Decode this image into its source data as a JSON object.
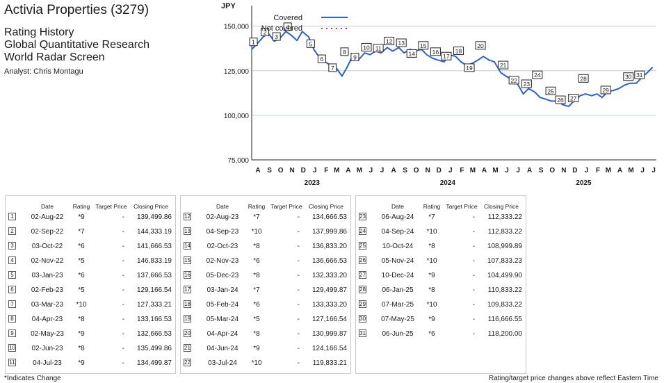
{
  "header": {
    "company": "Activia Properties (3279)",
    "line1": "Rating History",
    "line2": "Global Quantitative Research",
    "line3": "World Radar Screen",
    "analyst": "Analyst: Chris Montagu"
  },
  "chart_data": {
    "type": "line",
    "ylabel": "JPY",
    "ylim": [
      75000,
      160000
    ],
    "yticks": [
      75000,
      100000,
      125000,
      150000
    ],
    "ytick_labels": [
      "75,000",
      "100,000",
      "125,000",
      "150,000"
    ],
    "xlim": [
      "2022-08-01",
      "2025-07-25"
    ],
    "month_labels": [
      "A",
      "S",
      "O",
      "N",
      "D",
      "J",
      "F",
      "M",
      "A",
      "M",
      "J",
      "J",
      "A",
      "S",
      "O",
      "N",
      "D",
      "J",
      "F",
      "M",
      "A",
      "M",
      "J",
      "J",
      "A",
      "S",
      "O",
      "N",
      "D",
      "J",
      "F",
      "M",
      "A",
      "M",
      "J",
      "J"
    ],
    "year_labels": [
      "2023",
      "2024",
      "2025"
    ],
    "grid": "horizontal",
    "legend_position": "top-left",
    "legend": [
      {
        "label": "Covered",
        "style": "solid",
        "color": "#2b5fd9"
      },
      {
        "label": "Not covered",
        "style": "dotted",
        "color": "#e03030"
      }
    ],
    "series": [
      {
        "name": "Covered",
        "points": [
          [
            "2022-08-01",
            137000
          ],
          [
            "2022-08-15",
            140000
          ],
          [
            "2022-09-01",
            144000
          ],
          [
            "2022-09-15",
            146000
          ],
          [
            "2022-10-01",
            141500
          ],
          [
            "2022-10-15",
            143000
          ],
          [
            "2022-11-01",
            147000
          ],
          [
            "2022-11-15",
            145000
          ],
          [
            "2022-12-01",
            142000
          ],
          [
            "2022-12-15",
            147000
          ],
          [
            "2023-01-01",
            144000
          ],
          [
            "2023-01-15",
            137000
          ],
          [
            "2023-02-01",
            132000
          ],
          [
            "2023-02-15",
            130000
          ],
          [
            "2023-03-01",
            128000
          ],
          [
            "2023-03-15",
            127000
          ],
          [
            "2023-04-01",
            122000
          ],
          [
            "2023-04-15",
            127000
          ],
          [
            "2023-05-01",
            134000
          ],
          [
            "2023-05-15",
            131000
          ],
          [
            "2023-06-01",
            135000
          ],
          [
            "2023-06-15",
            134000
          ],
          [
            "2023-07-01",
            136000
          ],
          [
            "2023-07-15",
            135000
          ],
          [
            "2023-08-01",
            138000
          ],
          [
            "2023-08-15",
            136000
          ],
          [
            "2023-09-01",
            138000
          ],
          [
            "2023-09-15",
            135000
          ],
          [
            "2023-10-01",
            137000
          ],
          [
            "2023-10-15",
            136000
          ],
          [
            "2023-11-01",
            137000
          ],
          [
            "2023-11-15",
            134000
          ],
          [
            "2023-12-01",
            132000
          ],
          [
            "2023-12-15",
            131000
          ],
          [
            "2024-01-01",
            130000
          ],
          [
            "2024-01-15",
            134000
          ],
          [
            "2024-02-01",
            133000
          ],
          [
            "2024-02-15",
            130000
          ],
          [
            "2024-03-01",
            128000
          ],
          [
            "2024-03-15",
            129000
          ],
          [
            "2024-04-01",
            131000
          ],
          [
            "2024-04-15",
            133000
          ],
          [
            "2024-05-01",
            131000
          ],
          [
            "2024-05-15",
            130000
          ],
          [
            "2024-06-01",
            124000
          ],
          [
            "2024-06-15",
            122000
          ],
          [
            "2024-07-01",
            120000
          ],
          [
            "2024-07-15",
            118000
          ],
          [
            "2024-08-01",
            112000
          ],
          [
            "2024-08-15",
            115000
          ],
          [
            "2024-09-01",
            113000
          ],
          [
            "2024-09-15",
            110000
          ],
          [
            "2024-10-01",
            109000
          ],
          [
            "2024-10-15",
            108000
          ],
          [
            "2024-11-01",
            108000
          ],
          [
            "2024-11-15",
            106000
          ],
          [
            "2024-12-01",
            105000
          ],
          [
            "2024-12-15",
            108000
          ],
          [
            "2025-01-01",
            111000
          ],
          [
            "2025-01-15",
            112000
          ],
          [
            "2025-02-01",
            111000
          ],
          [
            "2025-02-15",
            112000
          ],
          [
            "2025-03-01",
            110000
          ],
          [
            "2025-03-15",
            113000
          ],
          [
            "2025-04-01",
            114000
          ],
          [
            "2025-04-15",
            115000
          ],
          [
            "2025-05-01",
            117000
          ],
          [
            "2025-05-15",
            118000
          ],
          [
            "2025-06-01",
            118000
          ],
          [
            "2025-06-15",
            121000
          ],
          [
            "2025-07-01",
            124000
          ],
          [
            "2025-07-15",
            127000
          ]
        ]
      }
    ],
    "markers": [
      {
        "n": 1,
        "date": "2022-08-02",
        "label_value": 141000
      },
      {
        "n": 2,
        "date": "2022-09-02",
        "label_value": 146500
      },
      {
        "n": 3,
        "date": "2022-10-03",
        "label_value": 144000
      },
      {
        "n": 4,
        "date": "2022-11-02",
        "label_value": 149500
      },
      {
        "n": 5,
        "date": "2023-01-03",
        "label_value": 140000
      },
      {
        "n": 6,
        "date": "2023-02-02",
        "label_value": 131500
      },
      {
        "n": 7,
        "date": "2023-03-03",
        "label_value": 126500
      },
      {
        "n": 8,
        "date": "2023-04-04",
        "label_value": 135500
      },
      {
        "n": 9,
        "date": "2023-05-02",
        "label_value": 132500
      },
      {
        "n": 10,
        "date": "2023-06-02",
        "label_value": 138000
      },
      {
        "n": 11,
        "date": "2023-07-04",
        "label_value": 137500
      },
      {
        "n": 12,
        "date": "2023-08-02",
        "label_value": 141500
      },
      {
        "n": 13,
        "date": "2023-09-04",
        "label_value": 140500
      },
      {
        "n": 14,
        "date": "2023-10-02",
        "label_value": 134500
      },
      {
        "n": 15,
        "date": "2023-11-02",
        "label_value": 139000
      },
      {
        "n": 16,
        "date": "2023-12-05",
        "label_value": 135500
      },
      {
        "n": 17,
        "date": "2024-01-03",
        "label_value": 133000
      },
      {
        "n": 18,
        "date": "2024-02-05",
        "label_value": 136000
      },
      {
        "n": 19,
        "date": "2024-03-05",
        "label_value": 126500
      },
      {
        "n": 20,
        "date": "2024-04-04",
        "label_value": 139000
      },
      {
        "n": 21,
        "date": "2024-06-04",
        "label_value": 128000
      },
      {
        "n": 22,
        "date": "2024-07-03",
        "label_value": 119500
      },
      {
        "n": 23,
        "date": "2024-08-06",
        "label_value": 117500
      },
      {
        "n": 24,
        "date": "2024-09-04",
        "label_value": 122500
      },
      {
        "n": 25,
        "date": "2024-10-10",
        "label_value": 113500
      },
      {
        "n": 26,
        "date": "2024-11-05",
        "label_value": 108500
      },
      {
        "n": 27,
        "date": "2024-12-10",
        "label_value": 109500
      },
      {
        "n": 28,
        "date": "2025-01-06",
        "label_value": 120500
      },
      {
        "n": 29,
        "date": "2025-03-07",
        "label_value": 114000
      },
      {
        "n": 30,
        "date": "2025-05-07",
        "label_value": 121500
      },
      {
        "n": 31,
        "date": "2025-06-06",
        "label_value": 122500
      }
    ]
  },
  "table": {
    "headers": {
      "date": "Date",
      "rating": "Rating",
      "target": "Target Price",
      "closing": "Closing Price"
    },
    "columns": [
      [
        {
          "n": "1",
          "date": "02-Aug-22",
          "rating": "*9",
          "target": "-",
          "closing": "139,499.86"
        },
        {
          "n": "2",
          "date": "02-Sep-22",
          "rating": "*7",
          "target": "-",
          "closing": "144,333.19"
        },
        {
          "n": "3",
          "date": "03-Oct-22",
          "rating": "*6",
          "target": "-",
          "closing": "141,666.53"
        },
        {
          "n": "4",
          "date": "02-Nov-22",
          "rating": "*5",
          "target": "-",
          "closing": "146,833.19"
        },
        {
          "n": "5",
          "date": "03-Jan-23",
          "rating": "*6",
          "target": "-",
          "closing": "137,666.53"
        },
        {
          "n": "6",
          "date": "02-Feb-23",
          "rating": "*5",
          "target": "-",
          "closing": "129,166.54"
        },
        {
          "n": "7",
          "date": "03-Mar-23",
          "rating": "*10",
          "target": "-",
          "closing": "127,333.21"
        },
        {
          "n": "8",
          "date": "04-Apr-23",
          "rating": "*8",
          "target": "-",
          "closing": "133,166.53"
        },
        {
          "n": "9",
          "date": "02-May-23",
          "rating": "*9",
          "target": "-",
          "closing": "132,666.53"
        },
        {
          "n": "10",
          "date": "02-Jun-23",
          "rating": "*8",
          "target": "-",
          "closing": "135,499.86"
        },
        {
          "n": "11",
          "date": "04-Jul-23",
          "rating": "*9",
          "target": "-",
          "closing": "134,499.87"
        }
      ],
      [
        {
          "n": "12",
          "date": "02-Aug-23",
          "rating": "*7",
          "target": "-",
          "closing": "134,666.53"
        },
        {
          "n": "13",
          "date": "04-Sep-23",
          "rating": "*10",
          "target": "-",
          "closing": "137,999.86"
        },
        {
          "n": "14",
          "date": "02-Oct-23",
          "rating": "*8",
          "target": "-",
          "closing": "136,833.20"
        },
        {
          "n": "15",
          "date": "02-Nov-23",
          "rating": "*6",
          "target": "-",
          "closing": "136,666.53"
        },
        {
          "n": "16",
          "date": "05-Dec-23",
          "rating": "*8",
          "target": "-",
          "closing": "132,333.20"
        },
        {
          "n": "17",
          "date": "03-Jan-24",
          "rating": "*7",
          "target": "-",
          "closing": "129,499.87"
        },
        {
          "n": "18",
          "date": "05-Feb-24",
          "rating": "*6",
          "target": "-",
          "closing": "133,333.20"
        },
        {
          "n": "19",
          "date": "05-Mar-24",
          "rating": "*5",
          "target": "-",
          "closing": "127,166.54"
        },
        {
          "n": "20",
          "date": "04-Apr-24",
          "rating": "*8",
          "target": "-",
          "closing": "130,999.87"
        },
        {
          "n": "21",
          "date": "04-Jun-24",
          "rating": "*9",
          "target": "-",
          "closing": "124,166.54"
        },
        {
          "n": "22",
          "date": "03-Jul-24",
          "rating": "*10",
          "target": "-",
          "closing": "119,833.21"
        }
      ],
      [
        {
          "n": "23",
          "date": "06-Aug-24",
          "rating": "*7",
          "target": "-",
          "closing": "112,333.22"
        },
        {
          "n": "24",
          "date": "04-Sep-24",
          "rating": "*10",
          "target": "-",
          "closing": "112,833.22"
        },
        {
          "n": "25",
          "date": "10-Oct-24",
          "rating": "*8",
          "target": "-",
          "closing": "108,999.89"
        },
        {
          "n": "26",
          "date": "05-Nov-24",
          "rating": "*10",
          "target": "-",
          "closing": "107,833.23"
        },
        {
          "n": "27",
          "date": "10-Dec-24",
          "rating": "*9",
          "target": "-",
          "closing": "104,499.90"
        },
        {
          "n": "28",
          "date": "06-Jan-25",
          "rating": "*8",
          "target": "-",
          "closing": "110,833.22"
        },
        {
          "n": "29",
          "date": "07-Mar-25",
          "rating": "*10",
          "target": "-",
          "closing": "109,833.22"
        },
        {
          "n": "30",
          "date": "07-May-25",
          "rating": "*9",
          "target": "-",
          "closing": "116,666.55"
        },
        {
          "n": "31",
          "date": "06-Jun-25",
          "rating": "*6",
          "target": "-",
          "closing": "118,200.00"
        }
      ]
    ]
  },
  "footer": {
    "left": "*Indicates Change",
    "right": "Rating/target price changes above reflect Eastern Time"
  }
}
